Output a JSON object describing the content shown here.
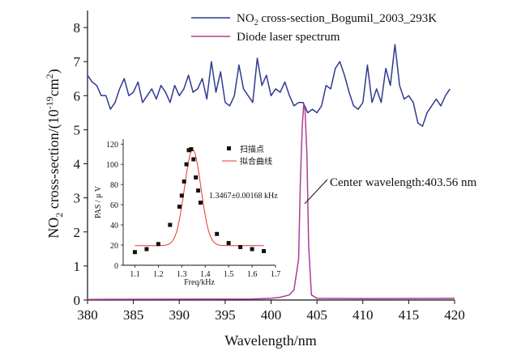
{
  "chart_data": [
    {
      "type": "line",
      "xlabel": "Wavelength/nm",
      "ylabel": {
        "pre": "NO",
        "sub": "2",
        "mid": " cross-section/(10",
        "sup1": "-19",
        "unit": "cm",
        "sup2": "2",
        "post": ")"
      },
      "xlim": [
        380,
        420
      ],
      "ylim": [
        0,
        8.5
      ],
      "xticks": [
        "380",
        "385",
        "390",
        "395",
        "400",
        "405",
        "410",
        "415",
        "420"
      ],
      "yticks": [
        "0",
        "1",
        "2",
        "3",
        "4",
        "5",
        "6",
        "7",
        "8"
      ],
      "legend_position": "top-right",
      "series": [
        {
          "name": {
            "pre": "NO",
            "sub": "2",
            "post": " cross-section_Bogumil_2003_293K"
          },
          "color": "#2f3a8f",
          "x": [
            380,
            380.5,
            381,
            381.5,
            382,
            382.5,
            383,
            383.5,
            384,
            384.5,
            385,
            385.5,
            386,
            386.5,
            387,
            387.5,
            388,
            388.5,
            389,
            389.5,
            390,
            390.5,
            391,
            391.5,
            392,
            392.5,
            393,
            393.5,
            394,
            394.5,
            395,
            395.5,
            396,
            396.5,
            397,
            397.5,
            398,
            398.5,
            399,
            399.5,
            400,
            400.5,
            401,
            401.5,
            402,
            402.5,
            403,
            403.5,
            404,
            404.5,
            405,
            405.5,
            406,
            406.5,
            407,
            407.5,
            408,
            408.5,
            409,
            409.5,
            410,
            410.5,
            411,
            411.5,
            412,
            412.5,
            413,
            413.5,
            414,
            414.5,
            415,
            415.5,
            416,
            416.5,
            417,
            417.5,
            418,
            418.5,
            419,
            419.5
          ],
          "y": [
            6.6,
            6.4,
            6.3,
            6.0,
            6.0,
            5.6,
            5.8,
            6.2,
            6.5,
            6.0,
            6.1,
            6.4,
            5.8,
            6.0,
            6.2,
            5.9,
            6.3,
            6.1,
            5.8,
            6.3,
            6.0,
            6.2,
            6.6,
            6.1,
            6.2,
            6.5,
            5.9,
            7.0,
            6.1,
            6.7,
            5.8,
            5.7,
            6.0,
            6.9,
            6.2,
            6.0,
            5.8,
            7.1,
            6.3,
            6.6,
            6.0,
            6.2,
            6.1,
            6.4,
            6.0,
            5.7,
            5.8,
            5.8,
            5.5,
            5.6,
            5.5,
            5.7,
            6.3,
            6.2,
            6.8,
            7.0,
            6.6,
            6.1,
            5.7,
            5.6,
            5.8,
            6.9,
            5.8,
            6.2,
            5.8,
            6.8,
            6.3,
            7.5,
            6.3,
            5.9,
            6.0,
            5.8,
            5.2,
            5.1,
            5.5,
            5.7,
            5.9,
            5.7,
            6.0,
            6.2
          ]
        },
        {
          "name": {
            "pre": "Diode laser spectrum",
            "sub": "",
            "post": ""
          },
          "color": "#b23a9a",
          "x": [
            380,
            398,
            400,
            401,
            402,
            402.5,
            403,
            403.2,
            403.4,
            403.56,
            403.7,
            403.9,
            404.1,
            404.4,
            405,
            410,
            420
          ],
          "y": [
            0.02,
            0.03,
            0.05,
            0.08,
            0.15,
            0.3,
            1.2,
            3.5,
            5.1,
            5.75,
            5.6,
            4.3,
            1.6,
            0.15,
            0.05,
            0.04,
            0.05
          ]
        }
      ],
      "annotation": {
        "text": "Center wavelength:403.56 nm",
        "x": 403.56,
        "y": 2.75
      }
    },
    {
      "type": "scatter",
      "xlabel": "Freq/kHz",
      "ylabel": "PAS / μ V",
      "xlim": [
        1.05,
        1.7
      ],
      "ylim": [
        0,
        125
      ],
      "xticks": [
        "1.1",
        "1.2",
        "1.3",
        "1.4",
        "1.5",
        "1.6",
        "1.7"
      ],
      "yticks": [
        "0",
        "20",
        "40",
        "60",
        "80",
        "100",
        "120"
      ],
      "legend_position": "top-right",
      "legend": [
        "扫描点",
        "拟合曲线"
      ],
      "annotation": "1.3467±0.00168 kHz",
      "points": {
        "name": "扫描点",
        "x": [
          1.1,
          1.15,
          1.2,
          1.25,
          1.29,
          1.3,
          1.31,
          1.32,
          1.33,
          1.34,
          1.35,
          1.36,
          1.37,
          1.38,
          1.45,
          1.5,
          1.55,
          1.6,
          1.65
        ],
        "y": [
          13,
          16,
          21,
          40,
          58,
          69,
          83,
          100,
          114,
          115,
          105,
          87,
          74,
          62,
          31,
          22,
          18,
          16,
          14
        ]
      },
      "fit": {
        "name": "拟合曲线",
        "color": "#e8352a",
        "baseline": 19.5,
        "amplitude": 95,
        "center": 1.3467,
        "sigma": 0.035
      }
    }
  ]
}
